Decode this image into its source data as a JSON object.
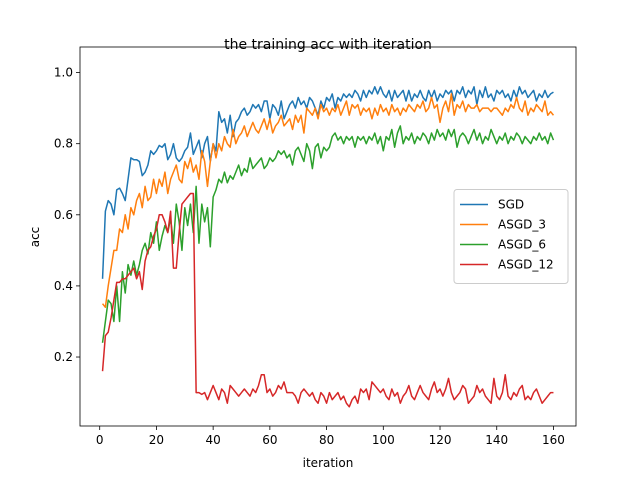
{
  "chart_data": {
    "type": "line",
    "title": "the training acc with iteration",
    "x_label": "iteration",
    "y_label": "acc",
    "x": [
      1,
      2,
      3,
      4,
      5,
      6,
      7,
      8,
      9,
      10,
      11,
      12,
      13,
      14,
      15,
      16,
      17,
      18,
      19,
      20,
      21,
      22,
      23,
      24,
      25,
      26,
      27,
      28,
      29,
      30,
      31,
      32,
      33,
      34,
      35,
      36,
      37,
      38,
      39,
      40,
      41,
      42,
      43,
      44,
      45,
      46,
      47,
      48,
      49,
      50,
      51,
      52,
      53,
      54,
      55,
      56,
      57,
      58,
      59,
      60,
      61,
      62,
      63,
      64,
      65,
      66,
      67,
      68,
      69,
      70,
      71,
      72,
      73,
      74,
      75,
      76,
      77,
      78,
      79,
      80,
      81,
      82,
      83,
      84,
      85,
      86,
      87,
      88,
      89,
      90,
      91,
      92,
      93,
      94,
      95,
      96,
      97,
      98,
      99,
      100,
      101,
      102,
      103,
      104,
      105,
      106,
      107,
      108,
      109,
      110,
      111,
      112,
      113,
      114,
      115,
      116,
      117,
      118,
      119,
      120,
      121,
      122,
      123,
      124,
      125,
      126,
      127,
      128,
      129,
      130,
      131,
      132,
      133,
      134,
      135,
      136,
      137,
      138,
      139,
      140,
      141,
      142,
      143,
      144,
      145,
      146,
      147,
      148,
      149,
      150,
      151,
      152,
      153,
      154,
      155,
      156,
      157,
      158,
      159,
      160
    ],
    "series": [
      {
        "name": "SGD",
        "color": "#1f77b4",
        "values": [
          0.42,
          0.61,
          0.64,
          0.63,
          0.6,
          0.67,
          0.675,
          0.66,
          0.64,
          0.7,
          0.76,
          0.755,
          0.755,
          0.75,
          0.71,
          0.72,
          0.74,
          0.78,
          0.77,
          0.78,
          0.795,
          0.79,
          0.8,
          0.755,
          0.77,
          0.8,
          0.76,
          0.75,
          0.76,
          0.78,
          0.79,
          0.83,
          0.77,
          0.79,
          0.81,
          0.76,
          0.8,
          0.82,
          0.75,
          0.8,
          0.78,
          0.89,
          0.86,
          0.87,
          0.83,
          0.88,
          0.82,
          0.86,
          0.87,
          0.89,
          0.9,
          0.88,
          0.89,
          0.91,
          0.9,
          0.91,
          0.89,
          0.92,
          0.92,
          0.87,
          0.91,
          0.9,
          0.88,
          0.92,
          0.87,
          0.89,
          0.91,
          0.92,
          0.9,
          0.93,
          0.91,
          0.92,
          0.9,
          0.93,
          0.92,
          0.9,
          0.88,
          0.92,
          0.9,
          0.93,
          0.92,
          0.94,
          0.9,
          0.93,
          0.92,
          0.94,
          0.93,
          0.94,
          0.93,
          0.95,
          0.94,
          0.92,
          0.95,
          0.93,
          0.95,
          0.94,
          0.96,
          0.94,
          0.96,
          0.94,
          0.93,
          0.95,
          0.92,
          0.95,
          0.93,
          0.94,
          0.95,
          0.92,
          0.95,
          0.92,
          0.94,
          0.93,
          0.95,
          0.93,
          0.92,
          0.95,
          0.93,
          0.95,
          0.92,
          0.94,
          0.93,
          0.95,
          0.94,
          0.95,
          0.92,
          0.95,
          0.94,
          0.96,
          0.93,
          0.95,
          0.94,
          0.96,
          0.91,
          0.95,
          0.93,
          0.96,
          0.93,
          0.94,
          0.92,
          0.95,
          0.94,
          0.95,
          0.93,
          0.94,
          0.92,
          0.95,
          0.93,
          0.96,
          0.94,
          0.95,
          0.93,
          0.94,
          0.95,
          0.92,
          0.94,
          0.93,
          0.95,
          0.93,
          0.94,
          0.945
        ]
      },
      {
        "name": "ASGD_3",
        "color": "#ff7f0e",
        "values": [
          0.35,
          0.34,
          0.4,
          0.45,
          0.5,
          0.5,
          0.56,
          0.55,
          0.6,
          0.56,
          0.62,
          0.6,
          0.64,
          0.66,
          0.62,
          0.68,
          0.64,
          0.65,
          0.7,
          0.66,
          0.7,
          0.68,
          0.72,
          0.66,
          0.7,
          0.72,
          0.74,
          0.7,
          0.69,
          0.75,
          0.73,
          0.76,
          0.72,
          0.74,
          0.7,
          0.78,
          0.75,
          0.68,
          0.75,
          0.8,
          0.76,
          0.8,
          0.78,
          0.82,
          0.8,
          0.79,
          0.84,
          0.8,
          0.82,
          0.83,
          0.85,
          0.82,
          0.84,
          0.86,
          0.84,
          0.83,
          0.85,
          0.87,
          0.84,
          0.87,
          0.83,
          0.85,
          0.86,
          0.88,
          0.85,
          0.86,
          0.87,
          0.84,
          0.88,
          0.86,
          0.88,
          0.83,
          0.9,
          0.89,
          0.88,
          0.9,
          0.87,
          0.91,
          0.89,
          0.9,
          0.88,
          0.9,
          0.89,
          0.91,
          0.88,
          0.9,
          0.92,
          0.88,
          0.91,
          0.9,
          0.91,
          0.88,
          0.9,
          0.89,
          0.9,
          0.87,
          0.9,
          0.88,
          0.91,
          0.89,
          0.9,
          0.88,
          0.91,
          0.89,
          0.9,
          0.88,
          0.9,
          0.89,
          0.91,
          0.9,
          0.89,
          0.91,
          0.9,
          0.92,
          0.89,
          0.9,
          0.93,
          0.9,
          0.91,
          0.86,
          0.9,
          0.92,
          0.89,
          0.94,
          0.88,
          0.91,
          0.9,
          0.92,
          0.89,
          0.91,
          0.9,
          0.9,
          0.91,
          0.89,
          0.9,
          0.9,
          0.9,
          0.89,
          0.9,
          0.9,
          0.89,
          0.88,
          0.9,
          0.89,
          0.91,
          0.9,
          0.93,
          0.9,
          0.89,
          0.92,
          0.88,
          0.9,
          0.89,
          0.91,
          0.9,
          0.89,
          0.92,
          0.88,
          0.89,
          0.88
        ]
      },
      {
        "name": "ASGD_6",
        "color": "#2ca02c",
        "values": [
          0.24,
          0.3,
          0.36,
          0.35,
          0.3,
          0.4,
          0.3,
          0.44,
          0.38,
          0.46,
          0.43,
          0.47,
          0.43,
          0.46,
          0.5,
          0.52,
          0.49,
          0.55,
          0.52,
          0.58,
          0.5,
          0.54,
          0.57,
          0.55,
          0.59,
          0.52,
          0.63,
          0.58,
          0.5,
          0.62,
          0.57,
          0.63,
          0.55,
          0.68,
          0.52,
          0.63,
          0.58,
          0.62,
          0.51,
          0.65,
          0.67,
          0.7,
          0.69,
          0.72,
          0.69,
          0.71,
          0.7,
          0.72,
          0.74,
          0.71,
          0.73,
          0.72,
          0.76,
          0.73,
          0.74,
          0.75,
          0.76,
          0.73,
          0.74,
          0.76,
          0.75,
          0.76,
          0.78,
          0.77,
          0.78,
          0.76,
          0.77,
          0.74,
          0.78,
          0.79,
          0.77,
          0.75,
          0.8,
          0.78,
          0.73,
          0.79,
          0.8,
          0.76,
          0.79,
          0.78,
          0.79,
          0.82,
          0.83,
          0.81,
          0.82,
          0.8,
          0.82,
          0.81,
          0.82,
          0.79,
          0.82,
          0.81,
          0.82,
          0.8,
          0.82,
          0.81,
          0.83,
          0.8,
          0.82,
          0.78,
          0.82,
          0.81,
          0.84,
          0.79,
          0.83,
          0.85,
          0.8,
          0.82,
          0.81,
          0.83,
          0.8,
          0.82,
          0.81,
          0.83,
          0.82,
          0.8,
          0.83,
          0.81,
          0.84,
          0.82,
          0.83,
          0.81,
          0.84,
          0.82,
          0.84,
          0.79,
          0.82,
          0.83,
          0.82,
          0.8,
          0.82,
          0.84,
          0.81,
          0.83,
          0.8,
          0.82,
          0.81,
          0.84,
          0.82,
          0.8,
          0.82,
          0.81,
          0.83,
          0.8,
          0.82,
          0.81,
          0.83,
          0.82,
          0.8,
          0.82,
          0.81,
          0.8,
          0.82,
          0.81,
          0.83,
          0.81,
          0.82,
          0.8,
          0.83,
          0.81
        ]
      },
      {
        "name": "ASGD_12",
        "color": "#d62728",
        "values": [
          0.16,
          0.26,
          0.27,
          0.31,
          0.36,
          0.41,
          0.41,
          0.42,
          0.42,
          0.43,
          0.44,
          0.45,
          0.42,
          0.44,
          0.39,
          0.47,
          0.5,
          0.51,
          0.54,
          0.56,
          0.6,
          0.6,
          0.58,
          0.55,
          0.61,
          0.45,
          0.45,
          0.55,
          0.63,
          0.64,
          0.65,
          0.66,
          0.66,
          0.1,
          0.1,
          0.095,
          0.1,
          0.08,
          0.1,
          0.12,
          0.1,
          0.08,
          0.11,
          0.1,
          0.07,
          0.12,
          0.11,
          0.1,
          0.09,
          0.1,
          0.11,
          0.1,
          0.09,
          0.11,
          0.1,
          0.12,
          0.15,
          0.15,
          0.1,
          0.11,
          0.09,
          0.1,
          0.12,
          0.11,
          0.13,
          0.1,
          0.1,
          0.1,
          0.09,
          0.07,
          0.1,
          0.11,
          0.1,
          0.09,
          0.1,
          0.08,
          0.07,
          0.1,
          0.09,
          0.07,
          0.1,
          0.08,
          0.09,
          0.1,
          0.08,
          0.09,
          0.07,
          0.06,
          0.08,
          0.09,
          0.07,
          0.11,
          0.1,
          0.11,
          0.08,
          0.13,
          0.12,
          0.11,
          0.1,
          0.11,
          0.09,
          0.08,
          0.11,
          0.09,
          0.1,
          0.07,
          0.09,
          0.1,
          0.12,
          0.09,
          0.08,
          0.1,
          0.12,
          0.1,
          0.09,
          0.08,
          0.11,
          0.13,
          0.1,
          0.11,
          0.09,
          0.11,
          0.14,
          0.1,
          0.08,
          0.09,
          0.1,
          0.12,
          0.11,
          0.07,
          0.08,
          0.09,
          0.12,
          0.1,
          0.11,
          0.09,
          0.08,
          0.07,
          0.14,
          0.09,
          0.08,
          0.1,
          0.15,
          0.09,
          0.08,
          0.1,
          0.09,
          0.11,
          0.12,
          0.08,
          0.09,
          0.08,
          0.1,
          0.11,
          0.09,
          0.07,
          0.08,
          0.09,
          0.1,
          0.1
        ]
      }
    ],
    "xlim": [
      -6.95,
      167.95
    ],
    "ylim": [
      0.006,
      1.041
    ],
    "xticks": [
      0,
      20,
      40,
      60,
      80,
      100,
      120,
      140,
      160
    ],
    "yticks": [
      0.2,
      0.4,
      0.6,
      0.8,
      {
        "value": 1,
        "label": "1.0"
      }
    ],
    "legend": "center right"
  }
}
